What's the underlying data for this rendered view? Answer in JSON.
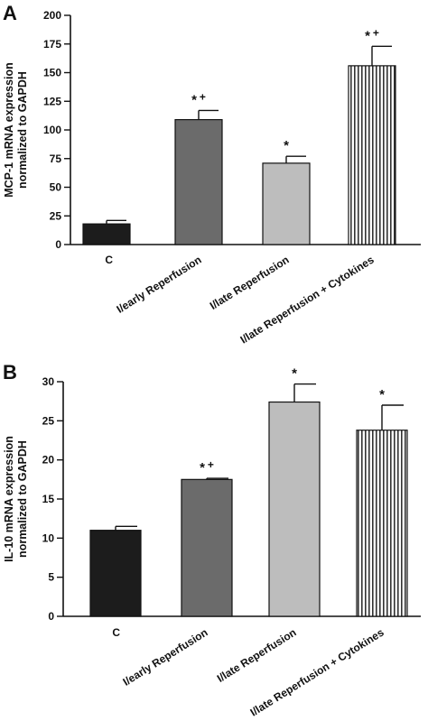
{
  "colors": {
    "axis": "#111111",
    "bar_C": "#1c1c1c",
    "bar_early": "#6b6b6b",
    "bar_late": "#bdbdbd",
    "bar_late_cyt": "#ffffff",
    "stripe": "#333333"
  },
  "chart_data": [
    {
      "type": "bar",
      "panel_label": "A",
      "ylabel_lines": [
        "MCP-1 mRNA expression",
        "normalized to GAPDH"
      ],
      "xlabel": "",
      "ylim": [
        0,
        200
      ],
      "yticks": [
        "0",
        "25",
        "50",
        "75",
        "100",
        "125",
        "150",
        "175",
        "200"
      ],
      "categories": [
        "C",
        "I/early Reperfusion",
        "I/late Reperfusion",
        "I/late Reperfusion + Cytokines"
      ],
      "values": [
        18,
        109,
        71,
        156
      ],
      "errors": [
        3,
        8,
        6,
        17
      ],
      "annotations": [
        "",
        "* +",
        "*",
        "* +"
      ],
      "fills": [
        "bar_C",
        "bar_early",
        "bar_late",
        "bar_late_cyt"
      ],
      "hatched": [
        false,
        false,
        false,
        true
      ]
    },
    {
      "type": "bar",
      "panel_label": "B",
      "ylabel_lines": [
        "IL-10 mRNA expression",
        "normalized to GAPDH"
      ],
      "xlabel": "",
      "ylim": [
        0,
        30
      ],
      "yticks": [
        "0",
        "5",
        "10",
        "15",
        "20",
        "25",
        "30"
      ],
      "categories": [
        "C",
        "I/early Reperfusion",
        "I/late Reperfusion",
        "I/late Reperfusion + Cytokines"
      ],
      "values": [
        11.0,
        17.5,
        27.4,
        23.8
      ],
      "errors": [
        0.5,
        0.15,
        2.3,
        3.2
      ],
      "annotations": [
        "",
        "* +",
        "*",
        "*"
      ],
      "fills": [
        "bar_C",
        "bar_early",
        "bar_late",
        "bar_late_cyt"
      ],
      "hatched": [
        false,
        false,
        false,
        true
      ]
    }
  ]
}
